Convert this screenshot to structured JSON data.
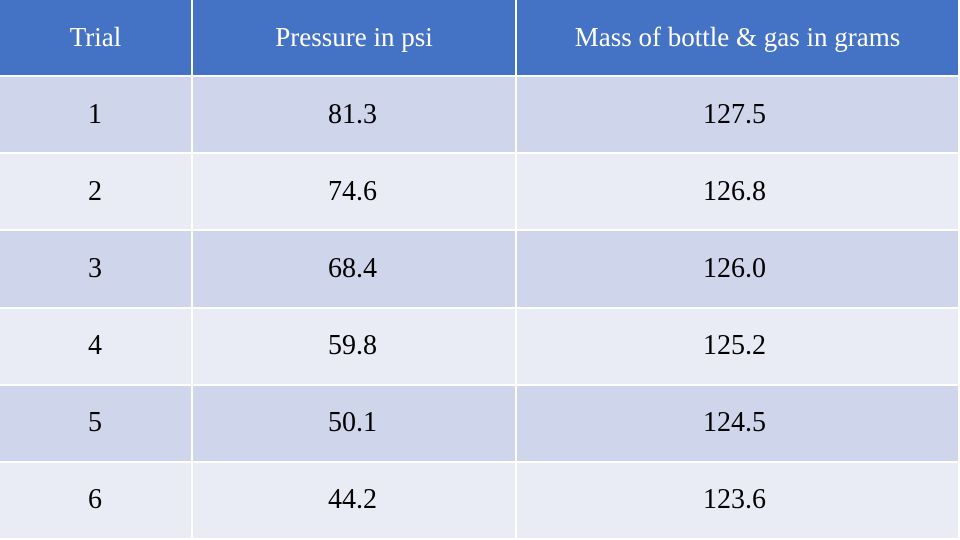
{
  "table": {
    "headers": [
      "Trial",
      "Pressure in psi",
      "Mass of bottle & gas in grams"
    ],
    "rows": [
      [
        "1",
        "81.3",
        "127.5"
      ],
      [
        "2",
        "74.6",
        "126.8"
      ],
      [
        "3",
        "68.4",
        "126.0"
      ],
      [
        "4",
        "59.8",
        "125.2"
      ],
      [
        "5",
        "50.1",
        "124.5"
      ],
      [
        "6",
        "44.2",
        "123.6"
      ]
    ]
  }
}
